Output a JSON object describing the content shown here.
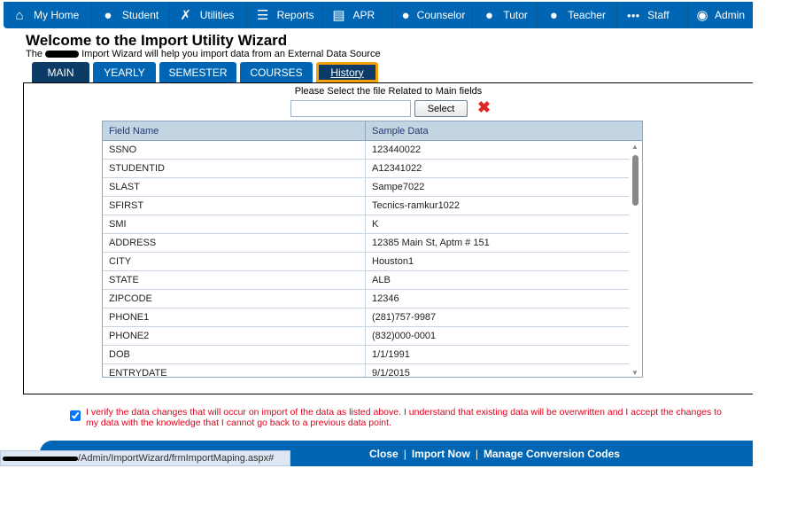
{
  "nav": [
    {
      "label": "My Home",
      "icon": "home-icon",
      "glyph": "⌂"
    },
    {
      "label": "Student",
      "icon": "student-icon",
      "glyph": "●"
    },
    {
      "label": "Utilities",
      "icon": "tools-icon",
      "glyph": "✗"
    },
    {
      "label": "Reports",
      "icon": "list-icon",
      "glyph": "☰"
    },
    {
      "label": "APR",
      "icon": "document-icon",
      "glyph": "▤"
    },
    {
      "label": "Counselor",
      "icon": "counselor-icon",
      "glyph": "●"
    },
    {
      "label": "Tutor",
      "icon": "tutor-icon",
      "glyph": "●"
    },
    {
      "label": "Teacher",
      "icon": "teacher-icon",
      "glyph": "●"
    },
    {
      "label": "Staff",
      "icon": "group-icon",
      "glyph": "●●●"
    },
    {
      "label": "Admin",
      "icon": "admin-icon",
      "glyph": "◉"
    }
  ],
  "title": "Welcome to the Import Utility Wizard",
  "subtitle_pre": "The",
  "subtitle_post": "Import Wizard will help you import data from an External Data Source",
  "tabs": [
    "MAIN",
    "YEARLY",
    "SEMESTER",
    "COURSES",
    "History"
  ],
  "prompt": "Please Select the file Related to Main fields",
  "file_value": "",
  "select_label": "Select",
  "table": {
    "headers": [
      "Field Name",
      "Sample Data"
    ],
    "rows": [
      [
        "SSNO",
        "123440022"
      ],
      [
        "STUDENTID",
        "A12341022"
      ],
      [
        "SLAST",
        "Sampe7022"
      ],
      [
        "SFIRST",
        "Tecnics-ramkur1022"
      ],
      [
        "SMI",
        "K"
      ],
      [
        "ADDRESS",
        "12385 Main St, Aptm # 151"
      ],
      [
        "CITY",
        "Houston1"
      ],
      [
        "STATE",
        "ALB"
      ],
      [
        "ZIPCODE",
        "12346"
      ],
      [
        "PHONE1",
        "(281)757-9987"
      ],
      [
        "PHONE2",
        "(832)000-0001"
      ],
      [
        "DOB",
        "1/1/1991"
      ],
      [
        "ENTRYDATE",
        "9/1/2015"
      ]
    ]
  },
  "verify_checked": true,
  "verify_text": "I verify the data changes that will occur on import of the data as listed above. I understand that existing data will be overwritten and I accept the changes to my data with the knowledge that I cannot go back to a previous data point.",
  "footer_links": [
    "Close",
    "Import Now",
    "Manage Conversion Codes"
  ],
  "status_url": "/Admin/ImportWizard/frmImportMaping.aspx#",
  "colors": {
    "nav": "#0066b3",
    "active_tab": "#0b3b66",
    "highlight": "#f2a10a",
    "warning": "#e0001b"
  }
}
